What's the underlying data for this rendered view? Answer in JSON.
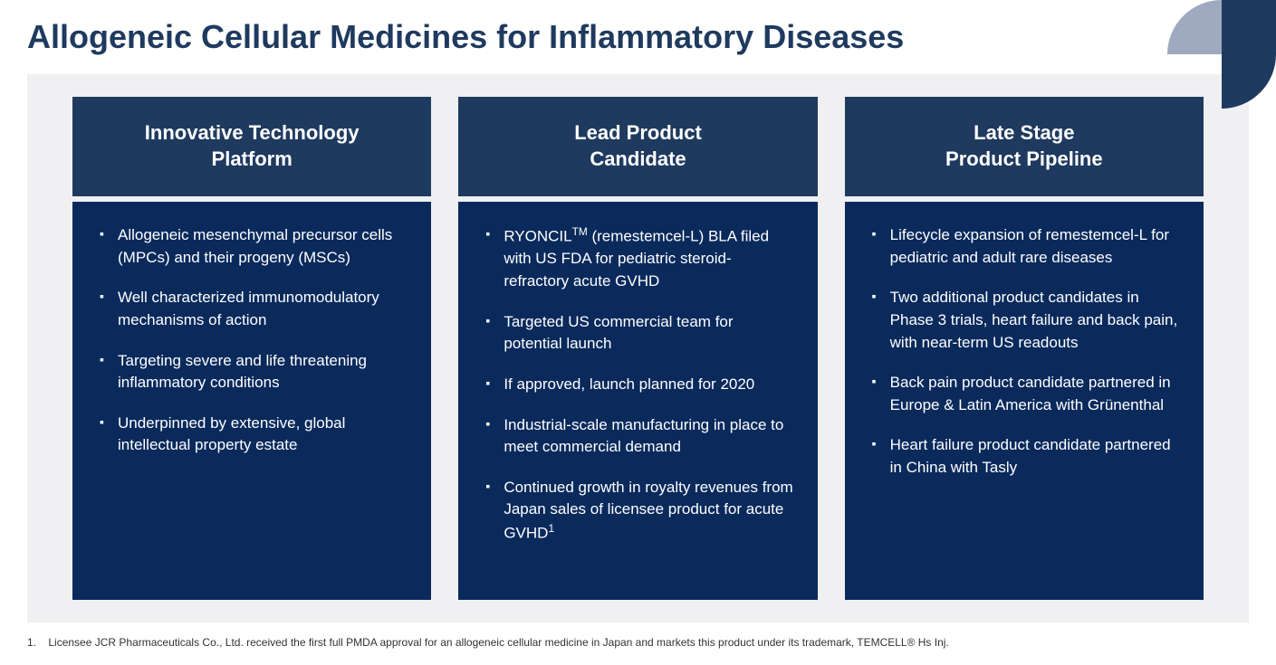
{
  "title": "Allogeneic Cellular Medicines for Inflammatory Diseases",
  "logo": {
    "quadrant_top_left_color": "#9fa9c0",
    "quadrant_top_right_color": "#1f3a5f",
    "quadrant_bottom_right_color": "#1f3a5f"
  },
  "layout": {
    "background_color": "#f0f0f2",
    "header_bg": "#1f3a5f",
    "body_bg": "#0a2a5c",
    "text_color": "#ffffff",
    "title_color": "#1f3a5f",
    "header_fontsize": 22,
    "body_fontsize": 17,
    "title_fontsize": 36
  },
  "columns": [
    {
      "header": "Innovative Technology Platform",
      "bullets": [
        "Allogeneic mesenchymal precursor cells (MPCs) and their progeny (MSCs)",
        "Well characterized immunomodulatory mechanisms of action",
        "Targeting severe and life threatening inflammatory conditions",
        "Underpinned by extensive, global intellectual property estate"
      ]
    },
    {
      "header": "Lead Product Candidate",
      "bullets_html": [
        "RYONCIL<sup>TM</sup> (remestemcel-L) BLA filed with US FDA for pediatric steroid-refractory acute GVHD",
        "Targeted US commercial team for potential launch",
        "If approved, launch planned for 2020",
        "Industrial-scale manufacturing in place to meet commercial demand",
        "Continued growth in royalty revenues from Japan sales of licensee product for acute GVHD<sup>1</sup>"
      ]
    },
    {
      "header": "Late Stage Product Pipeline",
      "bullets": [
        "Lifecycle expansion of remestemcel-L for pediatric and adult rare diseases",
        "Two additional product candidates in Phase 3 trials, heart  failure and back pain, with near-term US readouts",
        "Back pain product candidate partnered in Europe & Latin America with Grünenthal",
        "Heart failure product candidate partnered in China with Tasly"
      ]
    }
  ],
  "footnote": {
    "number": "1.",
    "text": "Licensee JCR Pharmaceuticals Co., Ltd. received the first full PMDA approval for an allogeneic cellular medicine in Japan and markets this product under its trademark, TEMCELL® Hs Inj."
  }
}
